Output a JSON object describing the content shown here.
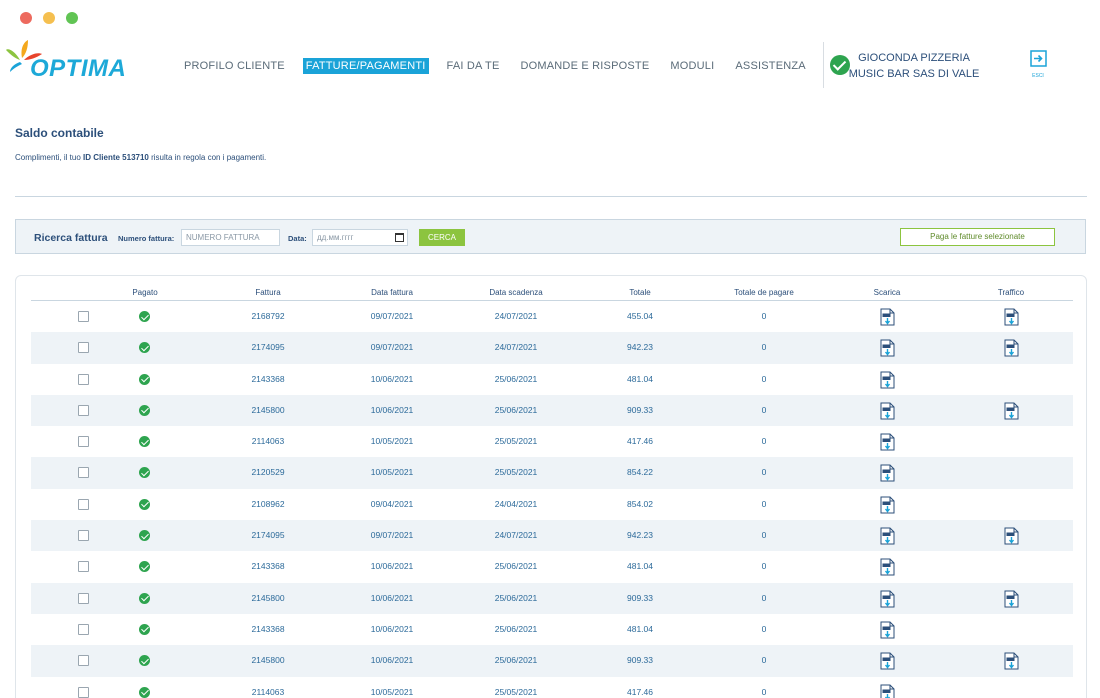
{
  "window": {
    "dots": [
      "#ed6a5e",
      "#f5bf4f",
      "#61c454"
    ]
  },
  "brand": {
    "name": "OPTIMA",
    "accent": "#1aa3d8"
  },
  "nav": [
    {
      "label": "PROFILO CLIENTE",
      "active": false
    },
    {
      "label": "FATTURE/PAGAMENTI",
      "active": true
    },
    {
      "label": "FAI DA TE",
      "active": false
    },
    {
      "label": "DOMANDE E RISPOSTE",
      "active": false
    },
    {
      "label": "MODULI",
      "active": false
    },
    {
      "label": "ASSISTENZA",
      "active": false
    }
  ],
  "user": {
    "line1": "GIOCONDA PIZZERIA",
    "line2": "MUSIC BAR SAS DI VALE",
    "exit_label": "ESCI"
  },
  "saldo": {
    "title": "Saldo contabile",
    "msg_pre": "Complimenti, il tuo",
    "msg_id": "ID Cliente 513710",
    "msg_post": "risulta in regola con i pagamenti."
  },
  "search": {
    "title": "Ricerca fattura",
    "numero_label": "Numero fattura:",
    "numero_placeholder": "NUMERO FATTURA",
    "data_label": "Data:",
    "data_placeholder": "дд.мм.гггг",
    "cerca_label": "CERCA",
    "paga_label": "Paga le fatture selezionate"
  },
  "table": {
    "columns": [
      "Pagato",
      "Fattura",
      "Data fattura",
      "Data scadenza",
      "Totale",
      "Totale de pagare",
      "Scarica",
      "Traffico"
    ],
    "rows": [
      {
        "fattura": "2168792",
        "data_fattura": "09/07/2021",
        "data_scadenza": "24/07/2021",
        "totale": "455.04",
        "da_pagare": "0",
        "traffico": true
      },
      {
        "fattura": "2174095",
        "data_fattura": "09/07/2021",
        "data_scadenza": "24/07/2021",
        "totale": "942.23",
        "da_pagare": "0",
        "traffico": true
      },
      {
        "fattura": "2143368",
        "data_fattura": "10/06/2021",
        "data_scadenza": "25/06/2021",
        "totale": "481.04",
        "da_pagare": "0",
        "traffico": false
      },
      {
        "fattura": "2145800",
        "data_fattura": "10/06/2021",
        "data_scadenza": "25/06/2021",
        "totale": "909.33",
        "da_pagare": "0",
        "traffico": true
      },
      {
        "fattura": "2114063",
        "data_fattura": "10/05/2021",
        "data_scadenza": "25/05/2021",
        "totale": "417.46",
        "da_pagare": "0",
        "traffico": false
      },
      {
        "fattura": "2120529",
        "data_fattura": "10/05/2021",
        "data_scadenza": "25/05/2021",
        "totale": "854.22",
        "da_pagare": "0",
        "traffico": false
      },
      {
        "fattura": "2108962",
        "data_fattura": "09/04/2021",
        "data_scadenza": "24/04/2021",
        "totale": "854.02",
        "da_pagare": "0",
        "traffico": false
      },
      {
        "fattura": "2174095",
        "data_fattura": "09/07/2021",
        "data_scadenza": "24/07/2021",
        "totale": "942.23",
        "da_pagare": "0",
        "traffico": true
      },
      {
        "fattura": "2143368",
        "data_fattura": "10/06/2021",
        "data_scadenza": "25/06/2021",
        "totale": "481.04",
        "da_pagare": "0",
        "traffico": false
      },
      {
        "fattura": "2145800",
        "data_fattura": "10/06/2021",
        "data_scadenza": "25/06/2021",
        "totale": "909.33",
        "da_pagare": "0",
        "traffico": true
      },
      {
        "fattura": "2143368",
        "data_fattura": "10/06/2021",
        "data_scadenza": "25/06/2021",
        "totale": "481.04",
        "da_pagare": "0",
        "traffico": false
      },
      {
        "fattura": "2145800",
        "data_fattura": "10/06/2021",
        "data_scadenza": "25/06/2021",
        "totale": "909.33",
        "da_pagare": "0",
        "traffico": true
      },
      {
        "fattura": "2114063",
        "data_fattura": "10/05/2021",
        "data_scadenza": "25/05/2021",
        "totale": "417.46",
        "da_pagare": "0",
        "traffico": false
      }
    ]
  }
}
